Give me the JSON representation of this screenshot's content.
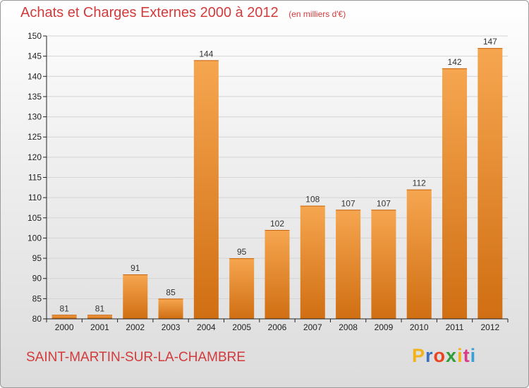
{
  "chart_data": {
    "type": "bar",
    "title": "Achats et Charges Externes 2000 à 2012",
    "subtitle": "(en milliers d'€)",
    "xlabel": "",
    "ylabel": "",
    "categories": [
      "2000",
      "2001",
      "2002",
      "2003",
      "2004",
      "2005",
      "2006",
      "2007",
      "2008",
      "2009",
      "2010",
      "2011",
      "2012"
    ],
    "values": [
      81,
      81,
      91,
      85,
      144,
      95,
      102,
      108,
      107,
      107,
      112,
      142,
      147
    ],
    "ylim": [
      80,
      150
    ],
    "yticks": [
      80,
      85,
      90,
      95,
      100,
      105,
      110,
      115,
      120,
      125,
      130,
      135,
      140,
      145,
      150
    ],
    "grid": true,
    "bar_color": "#f0922f",
    "bar_color_dark": "#d06e12",
    "data_labels": true
  },
  "footer": {
    "commune": "SAINT-MARTIN-SUR-LA-CHAMBRE",
    "brand": {
      "letters": [
        "P",
        "r",
        "o",
        "x",
        "i",
        "t",
        "i"
      ],
      "colors": [
        "#f2b21b",
        "#3a6fc4",
        "#e8441f",
        "#2f9e3a",
        "#f2b21b",
        "#d93a8a",
        "#3a9fd8"
      ]
    }
  },
  "colors": {
    "title": "#d23b3b",
    "axis": "#222222",
    "grid": "#d4d4d4"
  }
}
